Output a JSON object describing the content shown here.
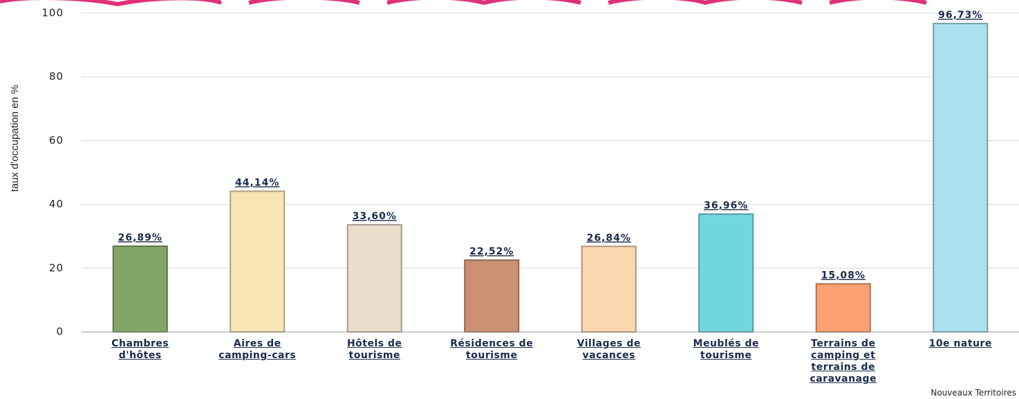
{
  "chart_data": {
    "type": "bar",
    "y_label": "taux d'occupation en %",
    "source": "Nouveaux Territoires",
    "categories": [
      "Chambres d'hôtes",
      "Aires de camping-cars",
      "Hôtels de tourisme",
      "Résidences de tourisme",
      "Villages de vacances",
      "Meublés de tourisme",
      "Terrains de camping et terrains de caravanage",
      "10e nature"
    ],
    "values": [
      26.89,
      44.14,
      33.6,
      22.52,
      26.84,
      36.96,
      15.08,
      96.73
    ],
    "value_labels": [
      "26,89%",
      "44,14%",
      "33,60%",
      "22,52%",
      "26,84%",
      "36,96%",
      "15,08%",
      "96,73%"
    ],
    "colors": [
      "#84a665",
      "#f9e4b4",
      "#ecdccc",
      "#cc9073",
      "#fbd6b0",
      "#72d8e0",
      "#fda071",
      "#a9e2ec"
    ],
    "ylim": [
      0,
      100
    ],
    "yticks": [
      0,
      20,
      40,
      60,
      80,
      100
    ],
    "grid": true
  }
}
